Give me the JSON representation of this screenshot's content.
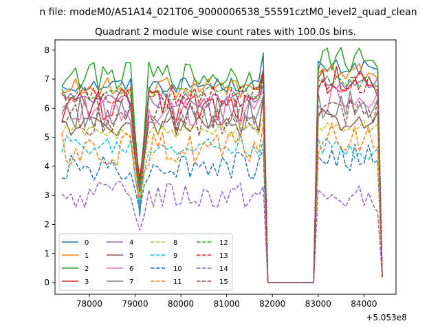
{
  "chart_data": {
    "type": "line",
    "suptitle": "n file: modeM0/AS1A14_021T06_9000006538_55591cztM0_level2_quad_clean",
    "title": "Quadrant 2 module wise count rates with 100.0s bins.",
    "xlabel": "",
    "ylabel": "",
    "x_offset_label": "+5.053e8",
    "xlim": [
      77250,
      84700
    ],
    "ylim": [
      -0.4,
      8.35
    ],
    "xticks": [
      78000,
      79000,
      80000,
      81000,
      82000,
      83000,
      84000
    ],
    "xtick_labels": [
      "78000",
      "79000",
      "80000",
      "81000",
      "82000",
      "83000",
      "84000"
    ],
    "yticks": [
      0,
      1,
      2,
      3,
      4,
      5,
      6,
      7,
      8
    ],
    "ytick_labels": [
      "0",
      "1",
      "2",
      "3",
      "4",
      "5",
      "6",
      "7",
      "8"
    ],
    "grid": false,
    "legend_position": "lower-left",
    "series": [
      {
        "name": "0",
        "color": "#1f77b4",
        "dash": "solid",
        "level1": 6.8,
        "level2": 7.4,
        "dip": 2.3,
        "last_pre": 7.9
      },
      {
        "name": "1",
        "color": "#ff7f0e",
        "dash": "solid",
        "level1": 6.7,
        "level2": 7.2,
        "dip": 3.1,
        "last_pre": 7.0
      },
      {
        "name": "2",
        "color": "#2ca02c",
        "dash": "solid",
        "level1": 7.1,
        "level2": 7.7,
        "dip": 3.3,
        "last_pre": 7.3
      },
      {
        "name": "3",
        "color": "#d62728",
        "dash": "solid",
        "level1": 6.1,
        "level2": 6.9,
        "dip": 3.6,
        "last_pre": 7.2
      },
      {
        "name": "4",
        "color": "#9467bd",
        "dash": "solid",
        "level1": 6.3,
        "level2": 6.8,
        "dip": 3.4,
        "last_pre": 6.8
      },
      {
        "name": "5",
        "color": "#8c564b",
        "dash": "solid",
        "level1": 5.4,
        "level2": 5.6,
        "dip": 3.2,
        "last_pre": 6.4
      },
      {
        "name": "6",
        "color": "#e377c2",
        "dash": "solid",
        "level1": 5.9,
        "level2": 6.3,
        "dip": 3.3,
        "last_pre": 6.6
      },
      {
        "name": "7",
        "color": "#7f7f7f",
        "dash": "solid",
        "level1": 5.8,
        "level2": 6.1,
        "dip": 3.2,
        "last_pre": 6.4
      },
      {
        "name": "8",
        "color": "#bcbd22",
        "dash": "dashed",
        "level1": 5.2,
        "level2": 5.4,
        "dip": 2.9,
        "last_pre": 5.7
      },
      {
        "name": "9",
        "color": "#17becf",
        "dash": "dashed",
        "level1": 4.7,
        "level2": 4.6,
        "dip": 2.7,
        "last_pre": 4.9
      },
      {
        "name": "10",
        "color": "#1f77b4",
        "dash": "dashed",
        "level1": 4.0,
        "level2": 4.3,
        "dip": 2.5,
        "last_pre": 4.6
      },
      {
        "name": "11",
        "color": "#ff7f0e",
        "dash": "dashed",
        "level1": 4.6,
        "level2": 4.9,
        "dip": 2.8,
        "last_pre": 5.4
      },
      {
        "name": "12",
        "color": "#2ca02c",
        "dash": "dashed",
        "level1": 6.5,
        "level2": 6.9,
        "dip": 3.4,
        "last_pre": 7.0
      },
      {
        "name": "13",
        "color": "#d62728",
        "dash": "dashed",
        "level1": 6.4,
        "level2": 6.9,
        "dip": 3.5,
        "last_pre": 7.3
      },
      {
        "name": "14",
        "color": "#9467bd",
        "dash": "dashed",
        "level1": 3.0,
        "level2": 2.9,
        "dip": 1.8,
        "last_pre": 3.3
      },
      {
        "name": "15",
        "color": "#8c564b",
        "dash": "dashed",
        "level1": 5.6,
        "level2": 5.8,
        "dip": 3.1,
        "last_pre": 6.3
      }
    ],
    "x_range": [
      77400,
      84400
    ],
    "bin_s": 100,
    "gap_range": [
      81900,
      82900
    ],
    "notch_x": 83650,
    "dip_x": 79100
  }
}
